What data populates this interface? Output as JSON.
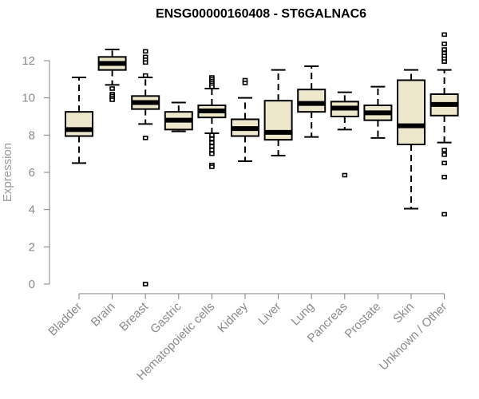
{
  "chart_data": {
    "type": "boxplot",
    "title": "ENSG00000160408 - ST6GALNAC6",
    "xlabel": "",
    "ylabel": "Expression",
    "ylim": [
      0,
      12
    ],
    "yticks": [
      0,
      2,
      4,
      6,
      8,
      10,
      12
    ],
    "grid": false,
    "legend": "none",
    "box_fill": "#ede7cc",
    "categories": [
      "Bladder",
      "Brain",
      "Breast",
      "Gastric",
      "Hematopoietic cells",
      "Kidney",
      "Liver",
      "Lung",
      "Pancreas",
      "Prostate",
      "Skin",
      "Unknown / Other"
    ],
    "series": [
      {
        "name": "Bladder",
        "whisker_low": 6.5,
        "q1": 7.95,
        "median": 8.3,
        "q3": 9.25,
        "whisker_high": 11.1,
        "outliers": []
      },
      {
        "name": "Brain",
        "whisker_low": 10.7,
        "q1": 11.5,
        "median": 11.85,
        "q3": 12.2,
        "whisker_high": 12.6,
        "outliers": [
          10.5,
          10.2,
          10.1,
          10.0,
          9.9
        ]
      },
      {
        "name": "Breast",
        "whisker_low": 8.6,
        "q1": 9.4,
        "median": 9.75,
        "q3": 10.1,
        "whisker_high": 11.1,
        "outliers": [
          12.5,
          12.2,
          12.05,
          11.9,
          11.2,
          7.85,
          0.0
        ]
      },
      {
        "name": "Gastric",
        "whisker_low": 8.2,
        "q1": 8.3,
        "median": 8.8,
        "q3": 9.25,
        "whisker_high": 9.75,
        "outliers": []
      },
      {
        "name": "Hematopoietic cells",
        "whisker_low": 8.1,
        "q1": 8.95,
        "median": 9.3,
        "q3": 9.6,
        "whisker_high": 10.5,
        "outliers": [
          11.1,
          11.0,
          10.9,
          10.8,
          10.7,
          10.6,
          8.0,
          7.8,
          7.6,
          7.4,
          7.2,
          7.0,
          6.4,
          6.3
        ]
      },
      {
        "name": "Kidney",
        "whisker_low": 6.6,
        "q1": 7.95,
        "median": 8.35,
        "q3": 8.85,
        "whisker_high": 10.0,
        "outliers": [
          10.95,
          10.8
        ]
      },
      {
        "name": "Liver",
        "whisker_low": 6.9,
        "q1": 7.75,
        "median": 8.15,
        "q3": 9.85,
        "whisker_high": 11.5,
        "outliers": []
      },
      {
        "name": "Lung",
        "whisker_low": 7.9,
        "q1": 9.25,
        "median": 9.7,
        "q3": 10.45,
        "whisker_high": 11.7,
        "outliers": []
      },
      {
        "name": "Pancreas",
        "whisker_low": 8.3,
        "q1": 9.0,
        "median": 9.45,
        "q3": 9.8,
        "whisker_high": 10.3,
        "outliers": [
          5.85
        ]
      },
      {
        "name": "Prostate",
        "whisker_low": 7.85,
        "q1": 8.8,
        "median": 9.2,
        "q3": 9.6,
        "whisker_high": 10.6,
        "outliers": []
      },
      {
        "name": "Skin",
        "whisker_low": 4.05,
        "q1": 7.5,
        "median": 8.5,
        "q3": 10.95,
        "whisker_high": 11.5,
        "outliers": []
      },
      {
        "name": "Unknown / Other",
        "whisker_low": 7.6,
        "q1": 9.05,
        "median": 9.65,
        "q3": 10.2,
        "whisker_high": 11.5,
        "outliers": [
          13.4,
          12.9,
          12.6,
          12.4,
          12.25,
          12.1,
          11.95,
          7.2,
          6.95,
          6.5,
          5.75,
          3.75
        ]
      }
    ]
  }
}
